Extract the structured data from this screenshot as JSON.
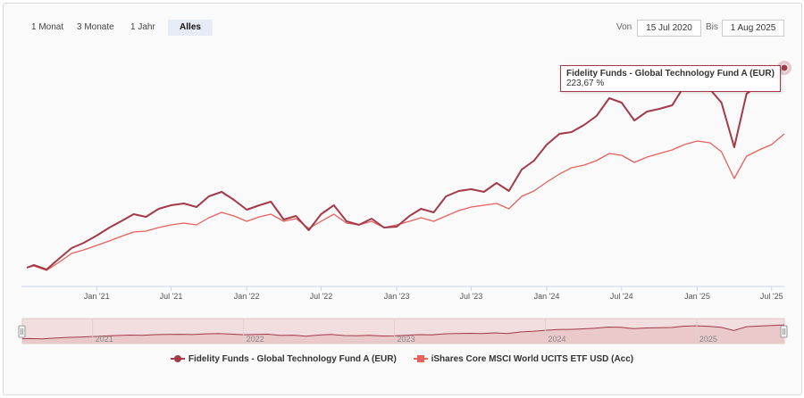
{
  "range_buttons": [
    {
      "label": "1 Monat",
      "active": false
    },
    {
      "label": "3 Monate",
      "active": false
    },
    {
      "label": "1 Jahr",
      "active": false
    },
    {
      "label": "Alles",
      "active": true
    }
  ],
  "date_range": {
    "from_label": "Von",
    "from": "15 Jul 2020",
    "to_label": "Bis",
    "to": "1 Aug 2025"
  },
  "tooltip": {
    "title": "Fidelity Funds - Global Technology Fund A (EUR)",
    "value": "223,67 %"
  },
  "colors": {
    "fund": "#a33a4a",
    "etf": "#e8615d",
    "nav_fill": "#f2dede",
    "grid": "#e6e6e6"
  },
  "chart_data": {
    "type": "line",
    "title": "",
    "xlabel": "",
    "ylabel": "",
    "grid": true,
    "legend": "bottom-center",
    "x_range": [
      "2020-07-15",
      "2025-08-01"
    ],
    "x_ticks": [
      "Jan '21",
      "Jul '21",
      "Jan '22",
      "Jul '22",
      "Jan '23",
      "Jul '23",
      "Jan '24",
      "Jul '24",
      "Jan '25",
      "Jul '25"
    ],
    "navigator_ticks": [
      "2021",
      "2022",
      "2023",
      "2024",
      "2025"
    ],
    "x": [
      "2020-07-15",
      "2020-08-01",
      "2020-09-01",
      "2020-10-01",
      "2020-11-01",
      "2020-12-01",
      "2021-01-01",
      "2021-02-01",
      "2021-03-01",
      "2021-04-01",
      "2021-05-01",
      "2021-06-01",
      "2021-07-01",
      "2021-08-01",
      "2021-09-01",
      "2021-10-01",
      "2021-11-01",
      "2021-12-01",
      "2022-01-01",
      "2022-02-01",
      "2022-03-01",
      "2022-04-01",
      "2022-05-01",
      "2022-06-01",
      "2022-07-01",
      "2022-08-01",
      "2022-09-01",
      "2022-10-01",
      "2022-11-01",
      "2022-12-01",
      "2023-01-01",
      "2023-02-01",
      "2023-03-01",
      "2023-04-01",
      "2023-05-01",
      "2023-06-01",
      "2023-07-01",
      "2023-08-01",
      "2023-09-01",
      "2023-10-01",
      "2023-11-01",
      "2023-12-01",
      "2024-01-01",
      "2024-02-01",
      "2024-03-01",
      "2024-04-01",
      "2024-05-01",
      "2024-06-01",
      "2024-07-01",
      "2024-08-01",
      "2024-09-01",
      "2024-10-01",
      "2024-11-01",
      "2024-12-01",
      "2025-01-01",
      "2025-02-01",
      "2025-03-01",
      "2025-04-01",
      "2025-05-01",
      "2025-06-01",
      "2025-07-01",
      "2025-08-01"
    ],
    "series": [
      {
        "name": "Fidelity Funds - Global Technology Fund A (EUR)",
        "values": [
          0,
          3,
          -2,
          10,
          22,
          28,
          36,
          45,
          52,
          60,
          57,
          66,
          70,
          72,
          68,
          80,
          85,
          76,
          65,
          70,
          74,
          54,
          58,
          42,
          60,
          70,
          52,
          48,
          55,
          45,
          46,
          58,
          66,
          62,
          80,
          86,
          88,
          85,
          95,
          86,
          110,
          120,
          138,
          150,
          152,
          160,
          170,
          190,
          185,
          165,
          175,
          178,
          182,
          204,
          210,
          200,
          185,
          135,
          195,
          205,
          215,
          224
        ]
      },
      {
        "name": "iShares Core MSCI World UCITS ETF USD (Acc)",
        "values": [
          0,
          2,
          -3,
          6,
          16,
          20,
          25,
          30,
          35,
          40,
          41,
          45,
          48,
          50,
          48,
          56,
          62,
          58,
          52,
          57,
          60,
          52,
          55,
          44,
          52,
          60,
          50,
          48,
          52,
          45,
          48,
          52,
          56,
          52,
          58,
          64,
          68,
          70,
          72,
          66,
          80,
          86,
          96,
          105,
          112,
          115,
          120,
          128,
          126,
          118,
          124,
          128,
          132,
          138,
          142,
          140,
          130,
          100,
          125,
          132,
          138,
          150
        ]
      }
    ]
  }
}
